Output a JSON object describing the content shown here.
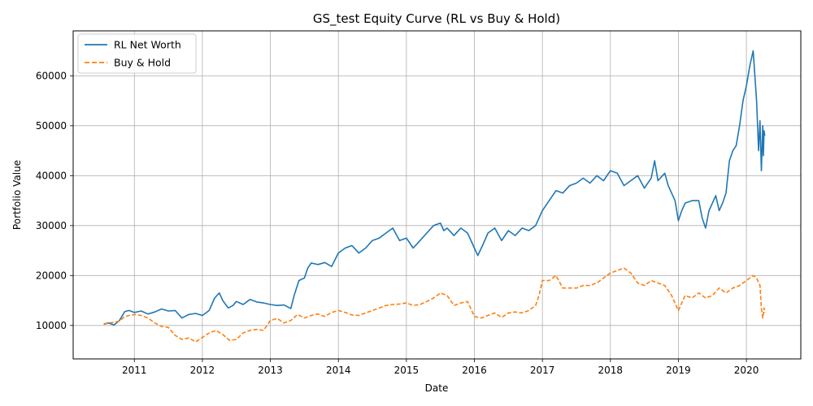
{
  "chart_data": {
    "type": "line",
    "title": "GS_test Equity Curve (RL vs Buy & Hold)",
    "xlabel": "Date",
    "ylabel": "Portfolio Value",
    "xlim": [
      2010.1,
      2020.8
    ],
    "ylim": [
      3300,
      69000
    ],
    "x_ticks": [
      2011,
      2012,
      2013,
      2014,
      2015,
      2016,
      2017,
      2018,
      2019,
      2020
    ],
    "y_ticks": [
      10000,
      20000,
      30000,
      40000,
      50000,
      60000
    ],
    "grid": true,
    "legend_position": "top-left",
    "series": [
      {
        "name": "RL Net Worth",
        "color": "#1f77b4",
        "style": "solid",
        "x": [
          2010.55,
          2010.62,
          2010.7,
          2010.78,
          2010.86,
          2010.92,
          2011.0,
          2011.1,
          2011.2,
          2011.3,
          2011.4,
          2011.5,
          2011.6,
          2011.7,
          2011.8,
          2011.9,
          2012.0,
          2012.1,
          2012.18,
          2012.25,
          2012.3,
          2012.38,
          2012.45,
          2012.5,
          2012.6,
          2012.7,
          2012.8,
          2012.9,
          2013.0,
          2013.1,
          2013.2,
          2013.3,
          2013.35,
          2013.42,
          2013.5,
          2013.55,
          2013.6,
          2013.7,
          2013.8,
          2013.9,
          2014.0,
          2014.1,
          2014.2,
          2014.3,
          2014.4,
          2014.5,
          2014.6,
          2014.7,
          2014.8,
          2014.9,
          2015.0,
          2015.1,
          2015.2,
          2015.3,
          2015.4,
          2015.5,
          2015.55,
          2015.6,
          2015.7,
          2015.8,
          2015.9,
          2016.0,
          2016.05,
          2016.12,
          2016.2,
          2016.3,
          2016.4,
          2016.5,
          2016.6,
          2016.7,
          2016.8,
          2016.9,
          2017.0,
          2017.1,
          2017.2,
          2017.3,
          2017.4,
          2017.5,
          2017.6,
          2017.7,
          2017.8,
          2017.9,
          2018.0,
          2018.1,
          2018.2,
          2018.3,
          2018.4,
          2018.5,
          2018.6,
          2018.65,
          2018.7,
          2018.8,
          2018.85,
          2018.9,
          2018.95,
          2019.0,
          2019.05,
          2019.1,
          2019.2,
          2019.3,
          2019.35,
          2019.4,
          2019.45,
          2019.5,
          2019.55,
          2019.6,
          2019.65,
          2019.7,
          2019.75,
          2019.8,
          2019.85,
          2019.9,
          2019.95,
          2020.0,
          2020.05,
          2020.1,
          2020.15,
          2020.18,
          2020.2,
          2020.22,
          2020.24,
          2020.25,
          2020.26,
          2020.27
        ],
        "values": [
          10300,
          10500,
          10100,
          11000,
          12800,
          13000,
          12600,
          12900,
          12300,
          12700,
          13300,
          12900,
          13000,
          11500,
          12200,
          12400,
          12000,
          13000,
          15500,
          16500,
          15000,
          13500,
          14000,
          14800,
          14200,
          15200,
          14700,
          14500,
          14200,
          14000,
          14100,
          13400,
          16000,
          19000,
          19500,
          21500,
          22500,
          22200,
          22600,
          21800,
          24500,
          25500,
          26000,
          24500,
          25500,
          27000,
          27500,
          28500,
          29500,
          27000,
          27500,
          25500,
          27000,
          28500,
          30000,
          30500,
          29000,
          29500,
          28000,
          29500,
          28500,
          25500,
          24000,
          26000,
          28500,
          29500,
          27000,
          29000,
          28000,
          29500,
          29000,
          30000,
          33000,
          35000,
          37000,
          36500,
          38000,
          38500,
          39500,
          38500,
          40000,
          39000,
          41000,
          40500,
          38000,
          39000,
          40000,
          37500,
          39500,
          43000,
          39000,
          40500,
          38000,
          36500,
          35000,
          31000,
          33000,
          34500,
          35000,
          35000,
          31500,
          29500,
          33000,
          34500,
          36000,
          33000,
          34500,
          36500,
          43000,
          45000,
          46000,
          50000,
          55000,
          58000,
          62000,
          65000,
          55000,
          45000,
          51000,
          41000,
          50000,
          44000,
          49000,
          48000
        ]
      },
      {
        "name": "Buy & Hold",
        "color": "#ff7f0e",
        "style": "dashed",
        "x": [
          2010.55,
          2010.62,
          2010.7,
          2010.78,
          2010.86,
          2010.92,
          2011.0,
          2011.1,
          2011.2,
          2011.3,
          2011.4,
          2011.5,
          2011.6,
          2011.7,
          2011.8,
          2011.9,
          2012.0,
          2012.1,
          2012.2,
          2012.3,
          2012.4,
          2012.5,
          2012.6,
          2012.7,
          2012.8,
          2012.9,
          2013.0,
          2013.1,
          2013.2,
          2013.3,
          2013.4,
          2013.5,
          2013.6,
          2013.7,
          2013.8,
          2013.9,
          2014.0,
          2014.1,
          2014.2,
          2014.3,
          2014.4,
          2014.5,
          2014.6,
          2014.7,
          2014.8,
          2014.9,
          2015.0,
          2015.1,
          2015.2,
          2015.3,
          2015.4,
          2015.5,
          2015.6,
          2015.7,
          2015.8,
          2015.9,
          2016.0,
          2016.1,
          2016.2,
          2016.3,
          2016.4,
          2016.5,
          2016.6,
          2016.7,
          2016.8,
          2016.9,
          2016.95,
          2017.0,
          2017.1,
          2017.2,
          2017.3,
          2017.4,
          2017.5,
          2017.6,
          2017.7,
          2017.8,
          2017.9,
          2018.0,
          2018.1,
          2018.2,
          2018.3,
          2018.4,
          2018.5,
          2018.6,
          2018.7,
          2018.8,
          2018.9,
          2019.0,
          2019.1,
          2019.2,
          2019.3,
          2019.4,
          2019.5,
          2019.6,
          2019.7,
          2019.8,
          2019.9,
          2020.0,
          2020.1,
          2020.15,
          2020.2,
          2020.22,
          2020.24,
          2020.26,
          2020.27
        ],
        "values": [
          10200,
          10500,
          10600,
          10900,
          11800,
          12000,
          12200,
          12000,
          11500,
          10500,
          9800,
          9600,
          8000,
          7200,
          7500,
          6700,
          7600,
          8500,
          9000,
          8200,
          7000,
          7200,
          8500,
          9000,
          9200,
          9000,
          11000,
          11400,
          10500,
          11000,
          12200,
          11500,
          12000,
          12300,
          11800,
          12600,
          13000,
          12600,
          12100,
          12000,
          12500,
          13000,
          13500,
          14000,
          14200,
          14300,
          14500,
          14000,
          14200,
          14800,
          15500,
          16500,
          16000,
          14000,
          14500,
          14800,
          11800,
          11500,
          12000,
          12500,
          11600,
          12500,
          12700,
          12500,
          13000,
          14000,
          16000,
          19000,
          19000,
          20000,
          17500,
          17500,
          17500,
          18000,
          18000,
          18500,
          19500,
          20500,
          21000,
          21500,
          20500,
          18500,
          18000,
          19000,
          18500,
          18000,
          16000,
          13000,
          16000,
          15500,
          16500,
          15500,
          16000,
          17500,
          16500,
          17500,
          18000,
          19000,
          20000,
          19500,
          18000,
          13500,
          11500,
          13500,
          12500
        ]
      }
    ]
  }
}
